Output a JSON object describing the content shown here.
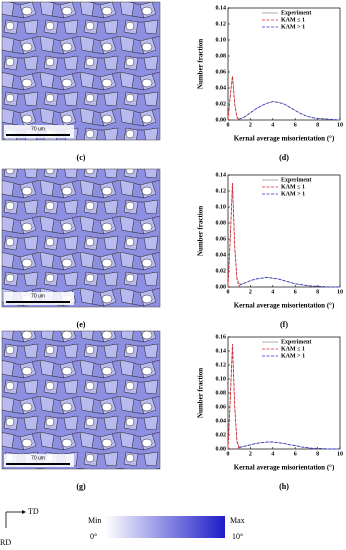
{
  "chart_data": [
    {
      "type": "line",
      "label": "(d)",
      "y_label": "Number fraction",
      "x_label": "Kernal average misorientation (°)",
      "x": [
        0,
        0.2,
        0.4,
        0.6,
        0.8,
        1,
        1.5,
        2,
        2.5,
        3,
        3.5,
        4,
        4.5,
        5,
        5.5,
        6,
        6.5,
        7,
        7.5,
        8,
        9,
        10
      ],
      "xlim": [
        0,
        10
      ],
      "xticks": [
        0,
        2,
        4,
        6,
        8,
        10
      ],
      "ylim": [
        0,
        0.14
      ],
      "yticks": [
        {
          "value": 0,
          "label": "0.00"
        },
        {
          "value": 0.02,
          "label": "0.02"
        },
        {
          "value": 0.04,
          "label": "0.04"
        },
        {
          "value": 0.06,
          "label": "0.06"
        },
        {
          "value": 0.08,
          "label": "0.08"
        },
        {
          "value": 0.1,
          "label": "0.10"
        },
        {
          "value": 0.12,
          "label": "0.12"
        },
        {
          "value": 0.14,
          "label": "0.14"
        }
      ],
      "series": [
        {
          "name": "Experiment",
          "color": "#9a9a9a",
          "dashed": false,
          "values": [
            0,
            0.03,
            0.055,
            0.02,
            0.004,
            0.001,
            0.004,
            0.009,
            0.014,
            0.018,
            0.021,
            0.023,
            0.022,
            0.02,
            0.016,
            0.012,
            0.008,
            0.005,
            0.003,
            0.002,
            0.001,
            0
          ]
        },
        {
          "name": "KAM ≤ 1",
          "color": "#e3242b",
          "dashed": true,
          "values": [
            0,
            0.03,
            0.055,
            0.02,
            0.003,
            0,
            null,
            null,
            null,
            null,
            null,
            null,
            null,
            null,
            null,
            null,
            null,
            null,
            null,
            null,
            null,
            null
          ]
        },
        {
          "name": "KAM > 1",
          "color": "#3434c8",
          "dashed": true,
          "values": [
            null,
            null,
            null,
            null,
            null,
            0.001,
            0.004,
            0.009,
            0.014,
            0.018,
            0.021,
            0.023,
            0.022,
            0.02,
            0.016,
            0.012,
            0.008,
            0.005,
            0.003,
            0.002,
            0.001,
            0
          ]
        }
      ]
    },
    {
      "type": "line",
      "label": "(f)",
      "y_label": "Number fraction",
      "x_label": "Kernal average misorientation (°)",
      "x": [
        0,
        0.2,
        0.4,
        0.6,
        0.8,
        1,
        1.5,
        2,
        2.5,
        3,
        3.5,
        4,
        4.5,
        5,
        5.5,
        6,
        6.5,
        7,
        7.5,
        8,
        9,
        10
      ],
      "xlim": [
        0,
        10
      ],
      "xticks": [
        0,
        2,
        4,
        6,
        8,
        10
      ],
      "ylim": [
        0,
        0.14
      ],
      "yticks": [
        {
          "value": 0,
          "label": "0.00"
        },
        {
          "value": 0.02,
          "label": "0.02"
        },
        {
          "value": 0.04,
          "label": "0.04"
        },
        {
          "value": 0.06,
          "label": "0.06"
        },
        {
          "value": 0.08,
          "label": "0.08"
        },
        {
          "value": 0.1,
          "label": "0.10"
        },
        {
          "value": 0.12,
          "label": "0.12"
        },
        {
          "value": 0.14,
          "label": "0.14"
        }
      ],
      "series": [
        {
          "name": "Experiment",
          "color": "#9a9a9a",
          "dashed": false,
          "values": [
            0,
            0.06,
            0.13,
            0.05,
            0.012,
            0.004,
            0.005,
            0.008,
            0.01,
            0.011,
            0.012,
            0.011,
            0.01,
            0.008,
            0.006,
            0.004,
            0.003,
            0.002,
            0.001,
            0.001,
            0,
            0
          ]
        },
        {
          "name": "KAM ≤ 1",
          "color": "#e3242b",
          "dashed": true,
          "values": [
            0,
            0.06,
            0.13,
            0.05,
            0.01,
            0,
            null,
            null,
            null,
            null,
            null,
            null,
            null,
            null,
            null,
            null,
            null,
            null,
            null,
            null,
            null,
            null
          ]
        },
        {
          "name": "KAM > 1",
          "color": "#3434c8",
          "dashed": true,
          "values": [
            null,
            null,
            null,
            null,
            null,
            0.002,
            0.005,
            0.008,
            0.01,
            0.011,
            0.012,
            0.011,
            0.01,
            0.008,
            0.006,
            0.004,
            0.003,
            0.002,
            0.001,
            0.001,
            0,
            0
          ]
        }
      ]
    },
    {
      "type": "line",
      "label": "(h)",
      "y_label": "Number fraction",
      "x_label": "Kernal average misorientation (°)",
      "x": [
        0,
        0.2,
        0.4,
        0.6,
        0.8,
        1,
        1.5,
        2,
        2.5,
        3,
        3.5,
        4,
        4.5,
        5,
        5.5,
        6,
        6.5,
        7,
        7.5,
        8,
        9,
        10
      ],
      "xlim": [
        0,
        10
      ],
      "xticks": [
        0,
        2,
        4,
        6,
        8,
        10
      ],
      "ylim": [
        0,
        0.16
      ],
      "yticks": [
        {
          "value": 0,
          "label": "0.00"
        },
        {
          "value": 0.02,
          "label": "0.02"
        },
        {
          "value": 0.04,
          "label": "0.04"
        },
        {
          "value": 0.06,
          "label": "0.06"
        },
        {
          "value": 0.08,
          "label": "0.08"
        },
        {
          "value": 0.1,
          "label": "0.10"
        },
        {
          "value": 0.12,
          "label": "0.12"
        },
        {
          "value": 0.14,
          "label": "0.14"
        },
        {
          "value": 0.16,
          "label": "0.16"
        }
      ],
      "series": [
        {
          "name": "Experiment",
          "color": "#9a9a9a",
          "dashed": false,
          "values": [
            0,
            0.07,
            0.15,
            0.06,
            0.012,
            0.003,
            0.004,
            0.006,
            0.008,
            0.009,
            0.01,
            0.01,
            0.009,
            0.008,
            0.006,
            0.005,
            0.003,
            0.002,
            0.001,
            0.001,
            0,
            0
          ]
        },
        {
          "name": "KAM ≤ 1",
          "color": "#e3242b",
          "dashed": true,
          "values": [
            0,
            0.07,
            0.15,
            0.06,
            0.01,
            0,
            null,
            null,
            null,
            null,
            null,
            null,
            null,
            null,
            null,
            null,
            null,
            null,
            null,
            null,
            null,
            null
          ]
        },
        {
          "name": "KAM > 1",
          "color": "#3434c8",
          "dashed": true,
          "values": [
            null,
            null,
            null,
            null,
            null,
            0.002,
            0.004,
            0.006,
            0.008,
            0.009,
            0.01,
            0.01,
            0.009,
            0.008,
            0.006,
            0.005,
            0.003,
            0.002,
            0.001,
            0.001,
            0,
            0
          ]
        }
      ]
    }
  ],
  "images": [
    {
      "label": "(c)",
      "scale_bar": "70 um"
    },
    {
      "label": "(e)",
      "scale_bar": "70 um"
    },
    {
      "label": "(g)",
      "scale_bar": "70 um"
    }
  ],
  "orientation": {
    "x": "TD",
    "y": "RD"
  },
  "colorbar": {
    "min": "Min",
    "min_value": "0°",
    "max": "Max",
    "max_value": "10°"
  }
}
